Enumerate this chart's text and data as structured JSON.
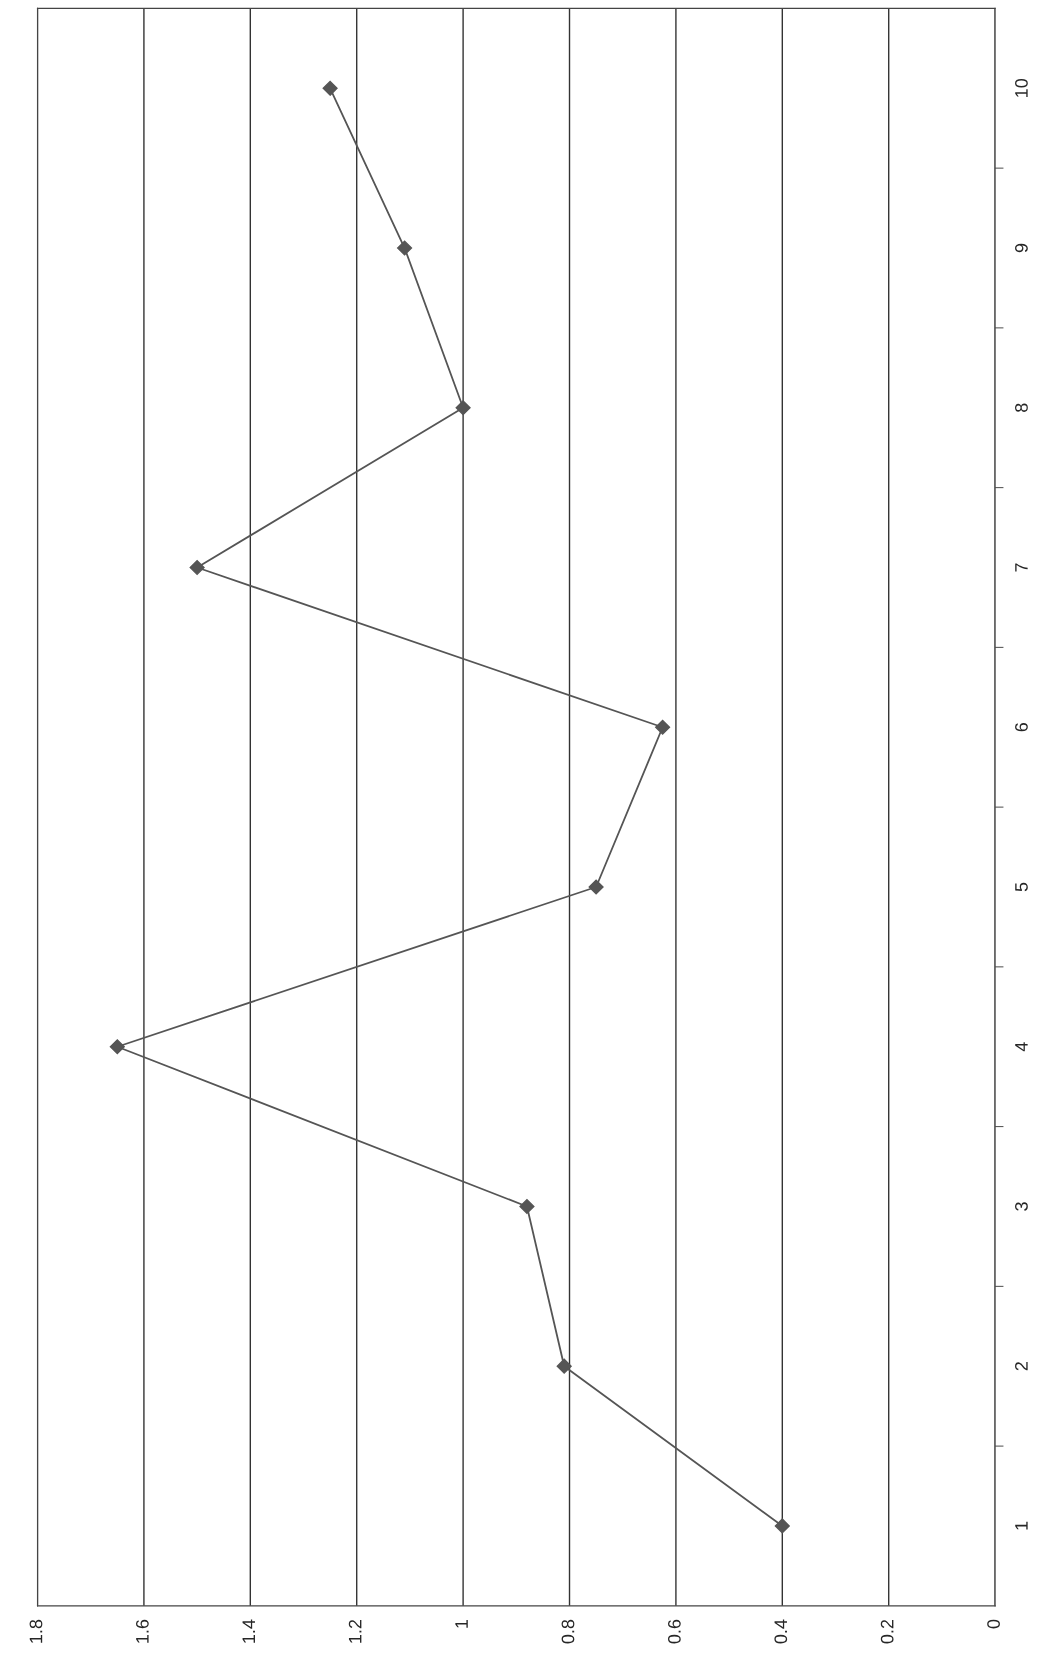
{
  "chart_data": {
    "type": "line",
    "orientation": "horizontal",
    "categories": [
      "10",
      "9",
      "8",
      "7",
      "6",
      "5",
      "4",
      "3",
      "2",
      "1"
    ],
    "series": [
      {
        "color": "#555555",
        "values": [
          1.25,
          1.11,
          1.0,
          1.5,
          0.625,
          0.75,
          1.65,
          0.88,
          0.81,
          0.4
        ]
      }
    ],
    "xlim": [
      1.8,
      0
    ],
    "xticks": [
      0,
      0.2,
      0.4,
      0.6,
      0.8,
      1,
      1.2,
      1.4,
      1.6,
      1.8
    ],
    "grid": "x",
    "marker": "diamond",
    "line_style": "solid",
    "legend": false
  }
}
